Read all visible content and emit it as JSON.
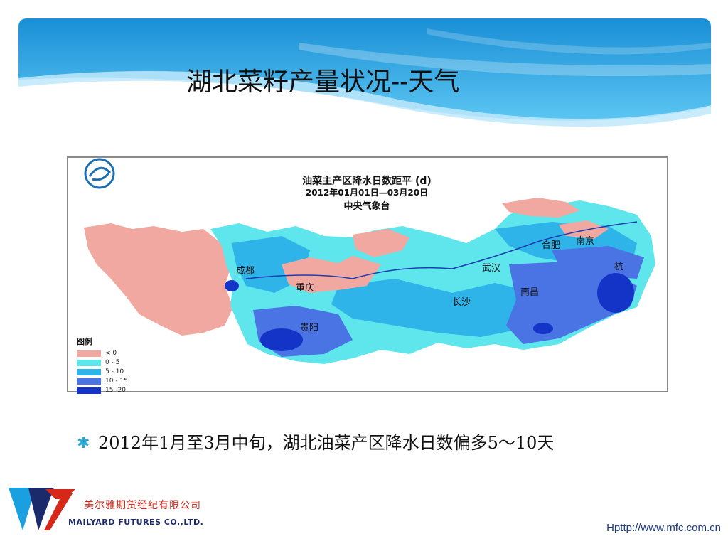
{
  "slide": {
    "title": "湖北菜籽产量状况--天气",
    "bullet": "2012年1月至3月中旬，湖北油菜产区降水日数偏多5～10天",
    "footer_url": "Hpttp://www.mfc.com.cn"
  },
  "map": {
    "title": "油菜主产区降水日数距平 (d)",
    "date_range": "2012年01月01日—03月20日",
    "source": "中央气象台",
    "cities": [
      "成都",
      "重庆",
      "贵阳",
      "武汉",
      "长沙",
      "南昌",
      "合肥",
      "南京",
      "杭"
    ],
    "legend": {
      "title": "图例",
      "items": [
        {
          "label": "< 0",
          "color": "#f0a8a0"
        },
        {
          "label": "0 - 5",
          "color": "#5ee6ec"
        },
        {
          "label": "5 - 10",
          "color": "#2eb4e8"
        },
        {
          "label": "10 - 15",
          "color": "#4a74e4"
        },
        {
          "label": "15 -20",
          "color": "#1434c8"
        }
      ]
    }
  },
  "company": {
    "name_cn": "美尔雅期货经纪有限公司",
    "name_en": "MAILYARD FUTURES  CO.,LTD."
  },
  "colors": {
    "banner_dark": "#1a8fd6",
    "banner_light": "#6fd0f4",
    "bullet_mark": "#2aa6d6"
  }
}
